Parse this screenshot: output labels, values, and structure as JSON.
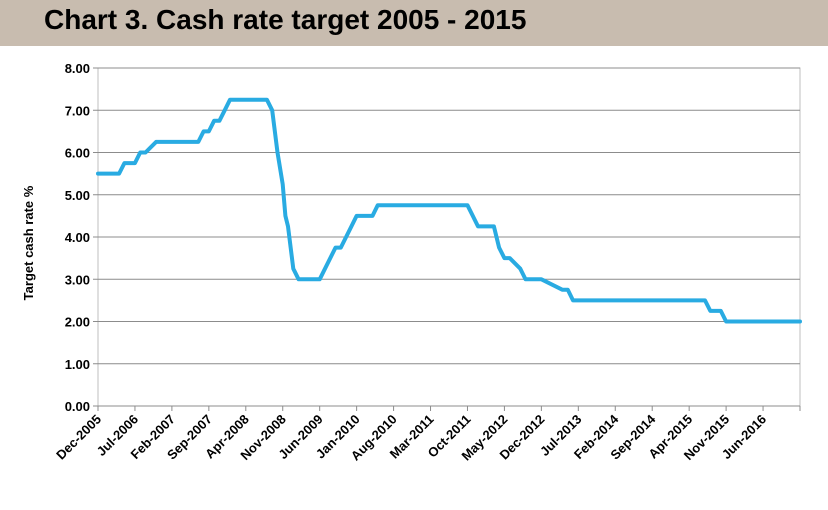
{
  "chart_data": {
    "type": "line",
    "title": "Chart 3. Cash rate target 2005 - 2015",
    "xlabel": "",
    "ylabel": "Target cash rate %",
    "ylim": [
      0,
      8
    ],
    "yticks": [
      "0.00",
      "1.00",
      "2.00",
      "3.00",
      "4.00",
      "5.00",
      "6.00",
      "7.00",
      "8.00"
    ],
    "x_range": [
      0,
      133
    ],
    "xtick_labels": [
      "Dec-2005",
      "Jul-2006",
      "Feb-2007",
      "Sep-2007",
      "Apr-2008",
      "Nov-2008",
      "Jun-2009",
      "Jan-2010",
      "Aug-2010",
      "Mar-2011",
      "Oct-2011",
      "May-2012",
      "Dec-2012",
      "Jul-2013",
      "Feb-2014",
      "Sep-2014",
      "Apr-2015",
      "Nov-2015",
      "Jun-2016"
    ],
    "xtick_positions": [
      0,
      7,
      14,
      21,
      28,
      35,
      42,
      49,
      56,
      63,
      70,
      77,
      84,
      91,
      98,
      105,
      112,
      119,
      126
    ],
    "grid": "horizontal",
    "line_color": "#29abe2",
    "series": [
      {
        "name": "Cash rate target",
        "x": [
          0,
          4,
          5,
          7,
          8,
          9,
          11,
          12,
          19,
          20,
          21,
          22,
          23,
          24,
          25,
          26,
          27,
          32,
          33,
          34,
          35,
          35.5,
          36,
          37,
          38,
          39,
          42,
          45,
          46,
          47,
          48,
          49,
          50,
          52,
          53,
          58,
          59,
          70,
          71,
          72,
          75,
          76,
          77,
          78,
          80,
          81,
          82,
          83,
          84,
          88,
          89,
          90,
          91,
          92,
          115,
          116,
          118,
          119,
          133
        ],
        "y": [
          5.5,
          5.5,
          5.75,
          5.75,
          6.0,
          6.0,
          6.25,
          6.25,
          6.25,
          6.5,
          6.5,
          6.75,
          6.75,
          7.0,
          7.25,
          7.25,
          7.25,
          7.25,
          7.0,
          6.0,
          5.25,
          4.5,
          4.25,
          3.25,
          3.0,
          3.0,
          3.0,
          3.75,
          3.75,
          4.0,
          4.25,
          4.5,
          4.5,
          4.5,
          4.75,
          4.75,
          4.75,
          4.75,
          4.5,
          4.25,
          4.25,
          3.75,
          3.5,
          3.5,
          3.25,
          3.0,
          3.0,
          3.0,
          3.0,
          2.75,
          2.75,
          2.5,
          2.5,
          2.5,
          2.5,
          2.25,
          2.25,
          2.0,
          2.0
        ]
      }
    ]
  }
}
